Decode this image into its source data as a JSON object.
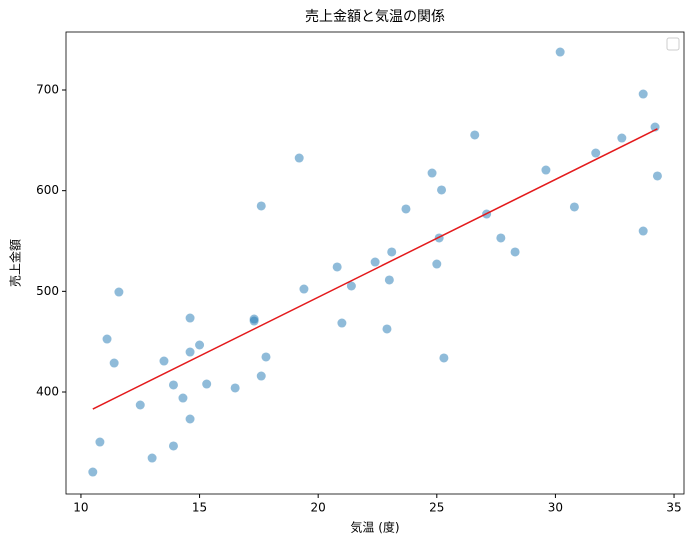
{
  "chart_data": {
    "type": "scatter",
    "title": "売上金額と気温の関係",
    "xlabel": "気温 (度)",
    "ylabel": "売上金額",
    "xlim": [
      9.37,
      35.42
    ],
    "ylim": [
      298.7,
      757.6
    ],
    "xticks": [
      10,
      15,
      20,
      25,
      30,
      35
    ],
    "yticks": [
      400,
      500,
      600,
      700
    ],
    "series": [
      {
        "color": "#1f77b4",
        "x": [
          10.5,
          10.8,
          11.1,
          11.4,
          11.6,
          12.5,
          13.0,
          13.5,
          13.9,
          13.9,
          14.3,
          14.6,
          14.6,
          14.6,
          15.0,
          15.3,
          16.5,
          17.3,
          17.3,
          17.6,
          17.6,
          17.8,
          19.2,
          19.4,
          20.8,
          21.0,
          21.4,
          22.4,
          22.9,
          23.0,
          23.1,
          23.7,
          24.8,
          25.0,
          25.1,
          25.2,
          25.3,
          26.6,
          27.1,
          27.7,
          28.3,
          29.6,
          30.2,
          30.8,
          31.7,
          32.8,
          33.7,
          33.7,
          34.2,
          34.3
        ],
        "values": [
          320.5,
          350.3,
          452.6,
          428.8,
          499.3,
          387.1,
          334.4,
          430.8,
          407.0,
          346.4,
          394.0,
          439.7,
          473.5,
          373.2,
          446.7,
          407.9,
          404.0,
          472.5,
          470.5,
          584.8,
          415.9,
          434.8,
          632.4,
          502.3,
          524.2,
          468.5,
          505.3,
          529.1,
          462.6,
          511.3,
          539.1,
          581.8,
          617.5,
          527.1,
          553.0,
          600.7,
          433.8,
          655.3,
          576.8,
          553.0,
          539.1,
          620.5,
          737.7,
          583.8,
          637.4,
          652.3,
          696.0,
          559.9,
          663.2,
          614.6
        ]
      }
    ],
    "fit_line": {
      "color": "#e31a1c",
      "x": [
        10.5,
        34.3
      ],
      "values": [
        383.1,
        661.4
      ]
    }
  }
}
